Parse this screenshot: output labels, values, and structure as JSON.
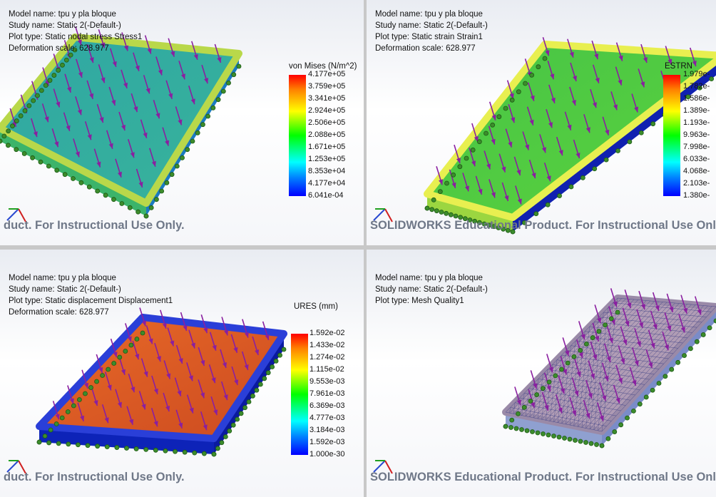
{
  "viewports": [
    {
      "info": [
        "Model name: tpu y pla bloque",
        "Study name: Static 2(-Default-)",
        "Plot type: Static nodal stress Stress1",
        "Deformation scale: 628.977"
      ],
      "legend": {
        "title": "von Mises (N/m^2)",
        "labels": [
          "4.177e+05",
          "3.759e+05",
          "3.341e+05",
          "2.924e+05",
          "2.506e+05",
          "2.088e+05",
          "1.671e+05",
          "1.253e+05",
          "8.353e+04",
          "4.177e+04",
          "6.041e-04"
        ]
      },
      "watermark": "duct. For Instructional Use Only."
    },
    {
      "info": [
        "Model name: tpu y pla bloque",
        "Study name: Static 2(-Default-)",
        "Plot type: Static strain Strain1",
        "Deformation scale: 628.977"
      ],
      "legend": {
        "title": "ESTRN",
        "labels": [
          "1.979e-",
          "1.782e-",
          "1.586e-",
          "1.389e-",
          "1.193e-",
          "9.963e-",
          "7.998e-",
          "6.033e-",
          "4.068e-",
          "2.103e-",
          "1.380e-"
        ]
      },
      "watermark": "SOLIDWORKS Educational Product. For Instructional Use Only."
    },
    {
      "info": [
        "Model name: tpu y pla bloque",
        "Study name: Static 2(-Default-)",
        "Plot type: Static displacement Displacement1",
        "Deformation scale: 628.977"
      ],
      "legend": {
        "title": "URES (mm)",
        "labels": [
          "1.592e-02",
          "1.433e-02",
          "1.274e-02",
          "1.115e-02",
          "9.553e-03",
          "7.961e-03",
          "6.369e-03",
          "4.777e-03",
          "3.184e-03",
          "1.592e-03",
          "1.000e-30"
        ]
      },
      "watermark": "duct. For Instructional Use Only."
    },
    {
      "info": [
        "Model name: tpu y pla bloque",
        "Study name: Static 2(-Default-)",
        "Plot type: Mesh Quality1"
      ],
      "watermark": "SOLIDWORKS Educational Product. For Instructional Use Only."
    }
  ]
}
